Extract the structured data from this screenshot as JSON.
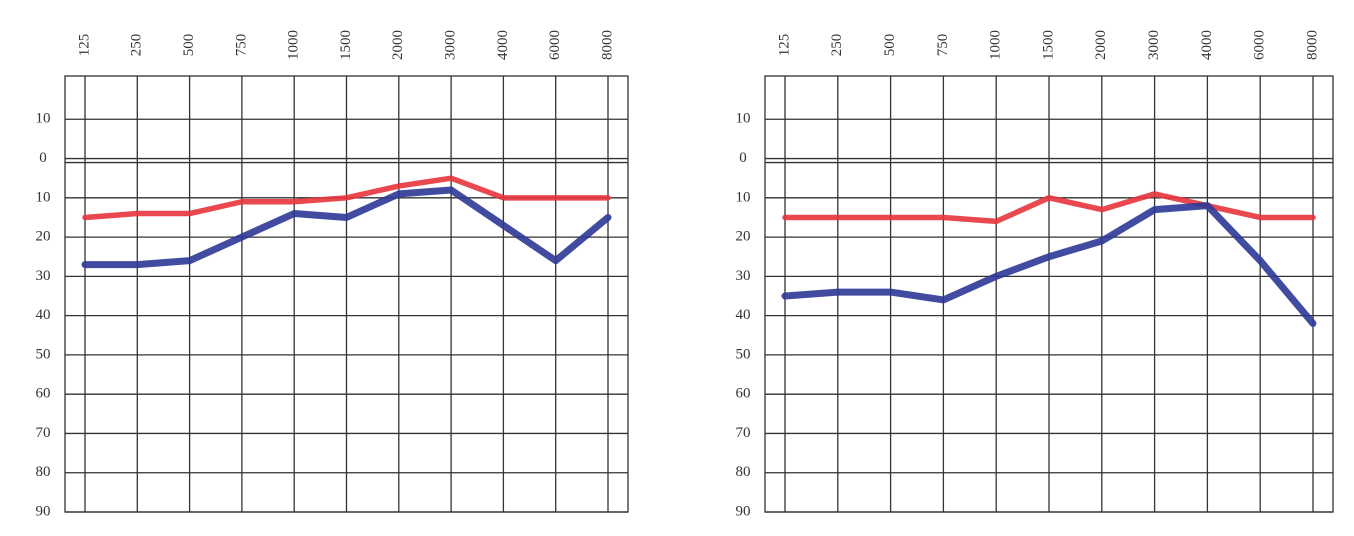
{
  "chart_data": [
    {
      "type": "line",
      "categories": [
        "125",
        "250",
        "500",
        "750",
        "1000",
        "1500",
        "2000",
        "3000",
        "4000",
        "6000",
        "8000"
      ],
      "series": [
        {
          "color": "#e8343c",
          "values": [
            15,
            14,
            14,
            11,
            11,
            10,
            7,
            5,
            10,
            10,
            10
          ]
        },
        {
          "color": "#2c3996",
          "values": [
            27,
            27,
            26,
            20,
            14,
            15,
            9,
            8,
            17,
            26,
            15
          ]
        }
      ],
      "ylim": [
        -20,
        90
      ],
      "yticks": [
        {
          "value": -10,
          "label": "10"
        },
        0,
        10,
        20,
        30,
        40,
        50,
        60,
        70,
        80,
        90
      ],
      "grid": true
    },
    {
      "type": "line",
      "categories": [
        "125",
        "250",
        "500",
        "750",
        "1000",
        "1500",
        "2000",
        "3000",
        "4000",
        "6000",
        "8000"
      ],
      "series": [
        {
          "color": "#e8343c",
          "values": [
            15,
            15,
            15,
            15,
            16,
            10,
            13,
            9,
            12,
            15,
            15
          ]
        },
        {
          "color": "#2c3996",
          "values": [
            35,
            34,
            34,
            36,
            30,
            25,
            21,
            13,
            12,
            26,
            42
          ]
        }
      ],
      "ylim": [
        -20,
        90
      ],
      "yticks": [
        {
          "value": -10,
          "label": "10"
        },
        0,
        10,
        20,
        30,
        40,
        50,
        60,
        70,
        80,
        90
      ],
      "grid": true
    }
  ]
}
